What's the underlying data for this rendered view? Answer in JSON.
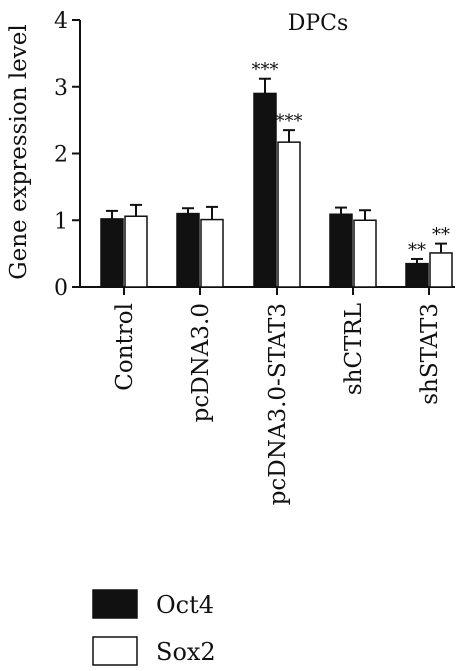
{
  "chart_data": {
    "type": "bar",
    "title": "DPCs",
    "ylabel": "Gene expression level",
    "xlabel": "",
    "ylim": [
      0,
      4
    ],
    "yticks": [
      0,
      1,
      2,
      3,
      4
    ],
    "categories": [
      "Control",
      "pcDNA3.0",
      "pcDNA3.0-STAT3",
      "shCTRL",
      "shSTAT3"
    ],
    "series": [
      {
        "name": "Oct4",
        "color": "#111111",
        "fill": "solid",
        "values": [
          1.02,
          1.1,
          2.9,
          1.09,
          0.35
        ],
        "errors": [
          0.12,
          0.08,
          0.22,
          0.1,
          0.07
        ],
        "annotations": [
          "",
          "",
          "***",
          "",
          "**"
        ]
      },
      {
        "name": "Sox2",
        "color": "#ffffff",
        "fill": "outline",
        "values": [
          1.06,
          1.01,
          2.17,
          1.0,
          0.51
        ],
        "errors": [
          0.17,
          0.19,
          0.18,
          0.15,
          0.14
        ],
        "annotations": [
          "",
          "",
          "***",
          "",
          "**"
        ]
      }
    ],
    "grid": false,
    "legend_position": "bottom-left"
  }
}
